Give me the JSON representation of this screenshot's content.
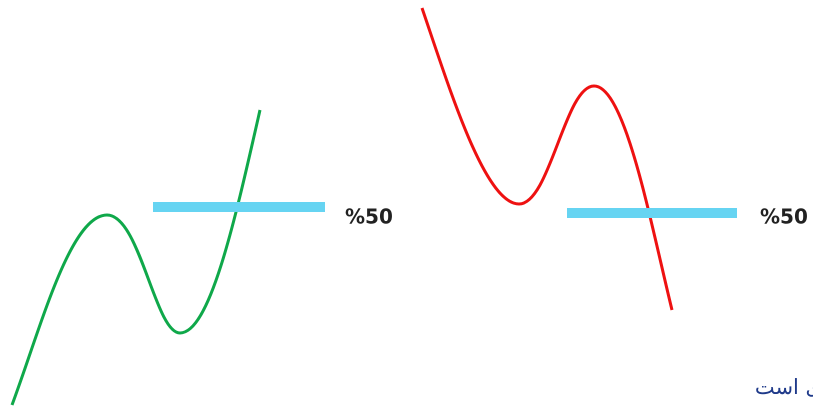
{
  "diagram": {
    "left": {
      "label": "%50"
    },
    "right": {
      "label": "%50"
    }
  },
  "caption": "ی است"
}
